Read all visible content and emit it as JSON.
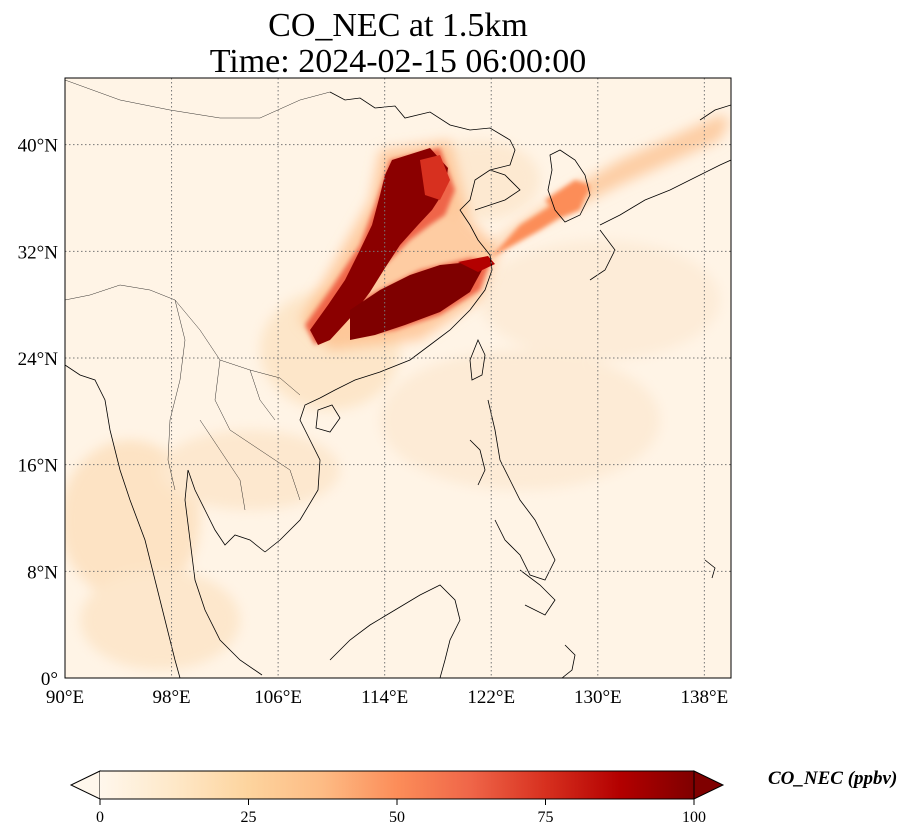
{
  "title_line1": "CO_NEC at 1.5km",
  "title_line2": "Time: 2024-02-15 06:00:00",
  "lon_ticks": [
    "90°E",
    "98°E",
    "106°E",
    "114°E",
    "122°E",
    "130°E",
    "138°E"
  ],
  "lat_ticks": [
    "0°",
    "8°N",
    "16°N",
    "24°N",
    "32°N",
    "40°N"
  ],
  "lon_values": [
    90,
    98,
    106,
    114,
    122,
    130,
    138
  ],
  "lat_values": [
    0,
    8,
    16,
    24,
    32,
    40
  ],
  "extent": {
    "lon_min": 90,
    "lon_max": 140,
    "lat_min": 0,
    "lat_max": 45
  },
  "colorbar": {
    "label": "CO_NEC (ppbv)",
    "ticks": [
      "0",
      "25",
      "50",
      "75",
      "100"
    ],
    "tick_values": [
      0,
      25,
      50,
      75,
      100
    ],
    "vmin": 0,
    "vmax": 100,
    "colormap": "OrRd",
    "colors": [
      "#fff7ec",
      "#fee8c8",
      "#fdd49e",
      "#fdbb84",
      "#fc8d59",
      "#ef6548",
      "#d7301f",
      "#b30000",
      "#7f0000"
    ]
  },
  "gridlines": "dotted"
}
